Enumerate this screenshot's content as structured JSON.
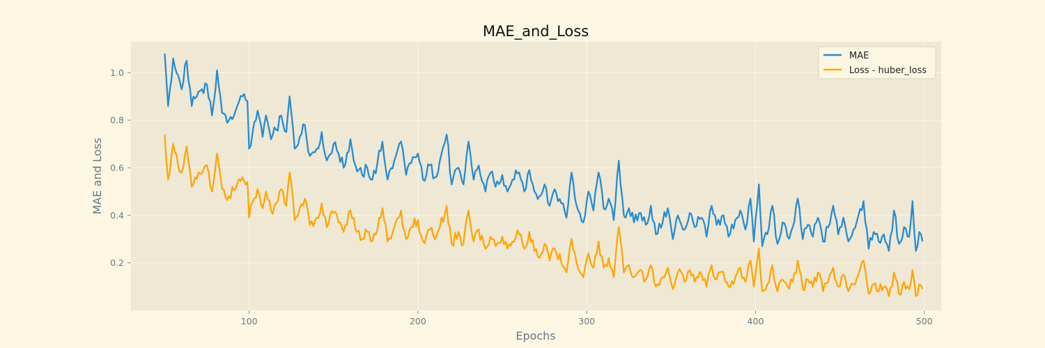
{
  "chart_data": {
    "type": "line",
    "title": "MAE_and_Loss",
    "xlabel": "Epochs",
    "ylabel": "MAE and Loss",
    "xlim": [
      30,
      510
    ],
    "ylim": [
      0,
      1.13
    ],
    "xticks": [
      100,
      200,
      300,
      400,
      500
    ],
    "yticks": [
      0.2,
      0.4,
      0.6,
      0.8,
      1.0
    ],
    "ytick_labels": [
      "0.2",
      "0.4",
      "0.6",
      "0.8",
      "1.0"
    ],
    "x_start": 50,
    "x_end": 499,
    "grid": true,
    "legend_position": "top-right",
    "series": [
      {
        "name": "MAE",
        "color": "#268bd2",
        "anchors": [
          [
            50,
            1.08
          ],
          [
            52,
            0.86
          ],
          [
            55,
            1.06
          ],
          [
            60,
            0.93
          ],
          [
            63,
            1.05
          ],
          [
            66,
            0.86
          ],
          [
            70,
            0.92
          ],
          [
            75,
            0.95
          ],
          [
            78,
            0.82
          ],
          [
            81,
            1.01
          ],
          [
            84,
            0.83
          ],
          [
            88,
            0.8
          ],
          [
            92,
            0.84
          ],
          [
            96,
            0.9
          ],
          [
            99,
            0.88
          ],
          [
            100,
            0.68
          ],
          [
            103,
            0.79
          ],
          [
            105,
            0.84
          ],
          [
            108,
            0.73
          ],
          [
            110,
            0.82
          ],
          [
            113,
            0.72
          ],
          [
            116,
            0.76
          ],
          [
            119,
            0.82
          ],
          [
            122,
            0.75
          ],
          [
            124,
            0.9
          ],
          [
            127,
            0.68
          ],
          [
            130,
            0.73
          ],
          [
            133,
            0.78
          ],
          [
            136,
            0.65
          ],
          [
            140,
            0.68
          ],
          [
            143,
            0.75
          ],
          [
            146,
            0.63
          ],
          [
            150,
            0.7
          ],
          [
            153,
            0.66
          ],
          [
            156,
            0.6
          ],
          [
            160,
            0.72
          ],
          [
            163,
            0.61
          ],
          [
            167,
            0.57
          ],
          [
            170,
            0.6
          ],
          [
            173,
            0.55
          ],
          [
            176,
            0.62
          ],
          [
            179,
            0.71
          ],
          [
            182,
            0.55
          ],
          [
            186,
            0.63
          ],
          [
            190,
            0.71
          ],
          [
            193,
            0.57
          ],
          [
            196,
            0.62
          ],
          [
            200,
            0.66
          ],
          [
            203,
            0.55
          ],
          [
            207,
            0.61
          ],
          [
            210,
            0.56
          ],
          [
            213,
            0.63
          ],
          [
            217,
            0.74
          ],
          [
            220,
            0.53
          ],
          [
            224,
            0.6
          ],
          [
            227,
            0.53
          ],
          [
            230,
            0.71
          ],
          [
            233,
            0.55
          ],
          [
            236,
            0.61
          ],
          [
            240,
            0.5
          ],
          [
            243,
            0.58
          ],
          [
            246,
            0.52
          ],
          [
            250,
            0.57
          ],
          [
            253,
            0.5
          ],
          [
            256,
            0.55
          ],
          [
            260,
            0.58
          ],
          [
            263,
            0.5
          ],
          [
            266,
            0.59
          ],
          [
            269,
            0.5
          ],
          [
            272,
            0.48
          ],
          [
            275,
            0.53
          ],
          [
            278,
            0.44
          ],
          [
            281,
            0.51
          ],
          [
            285,
            0.45
          ],
          [
            288,
            0.39
          ],
          [
            291,
            0.58
          ],
          [
            294,
            0.44
          ],
          [
            298,
            0.37
          ],
          [
            301,
            0.5
          ],
          [
            304,
            0.42
          ],
          [
            307,
            0.58
          ],
          [
            310,
            0.43
          ],
          [
            313,
            0.47
          ],
          [
            316,
            0.38
          ],
          [
            319,
            0.63
          ],
          [
            322,
            0.4
          ],
          [
            325,
            0.43
          ],
          [
            328,
            0.37
          ],
          [
            332,
            0.41
          ],
          [
            335,
            0.36
          ],
          [
            338,
            0.44
          ],
          [
            341,
            0.32
          ],
          [
            345,
            0.37
          ],
          [
            348,
            0.43
          ],
          [
            351,
            0.3
          ],
          [
            354,
            0.4
          ],
          [
            358,
            0.34
          ],
          [
            361,
            0.41
          ],
          [
            364,
            0.35
          ],
          [
            368,
            0.39
          ],
          [
            371,
            0.31
          ],
          [
            374,
            0.44
          ],
          [
            377,
            0.36
          ],
          [
            381,
            0.4
          ],
          [
            384,
            0.31
          ],
          [
            388,
            0.38
          ],
          [
            391,
            0.42
          ],
          [
            394,
            0.34
          ],
          [
            397,
            0.47
          ],
          [
            399,
            0.29
          ],
          [
            402,
            0.53
          ],
          [
            404,
            0.27
          ],
          [
            407,
            0.32
          ],
          [
            410,
            0.44
          ],
          [
            413,
            0.28
          ],
          [
            416,
            0.37
          ],
          [
            419,
            0.31
          ],
          [
            422,
            0.35
          ],
          [
            425,
            0.47
          ],
          [
            428,
            0.3
          ],
          [
            431,
            0.36
          ],
          [
            434,
            0.31
          ],
          [
            437,
            0.39
          ],
          [
            440,
            0.29
          ],
          [
            443,
            0.35
          ],
          [
            446,
            0.44
          ],
          [
            449,
            0.32
          ],
          [
            452,
            0.39
          ],
          [
            455,
            0.29
          ],
          [
            458,
            0.34
          ],
          [
            461,
            0.4
          ],
          [
            464,
            0.46
          ],
          [
            467,
            0.26
          ],
          [
            470,
            0.33
          ],
          [
            473,
            0.29
          ],
          [
            476,
            0.32
          ],
          [
            479,
            0.25
          ],
          [
            482,
            0.42
          ],
          [
            485,
            0.28
          ],
          [
            488,
            0.35
          ],
          [
            491,
            0.31
          ],
          [
            493,
            0.46
          ],
          [
            495,
            0.25
          ],
          [
            497,
            0.33
          ],
          [
            499,
            0.29
          ]
        ]
      },
      {
        "name": "Loss - huber_loss",
        "color": "#ffa500",
        "anchors": [
          [
            50,
            0.74
          ],
          [
            52,
            0.55
          ],
          [
            55,
            0.7
          ],
          [
            60,
            0.58
          ],
          [
            63,
            0.69
          ],
          [
            66,
            0.52
          ],
          [
            70,
            0.58
          ],
          [
            75,
            0.61
          ],
          [
            78,
            0.5
          ],
          [
            81,
            0.66
          ],
          [
            84,
            0.51
          ],
          [
            88,
            0.48
          ],
          [
            92,
            0.51
          ],
          [
            96,
            0.56
          ],
          [
            99,
            0.54
          ],
          [
            100,
            0.39
          ],
          [
            103,
            0.47
          ],
          [
            105,
            0.51
          ],
          [
            108,
            0.43
          ],
          [
            110,
            0.5
          ],
          [
            113,
            0.42
          ],
          [
            116,
            0.45
          ],
          [
            119,
            0.51
          ],
          [
            122,
            0.44
          ],
          [
            124,
            0.58
          ],
          [
            127,
            0.38
          ],
          [
            130,
            0.43
          ],
          [
            133,
            0.47
          ],
          [
            136,
            0.36
          ],
          [
            140,
            0.39
          ],
          [
            143,
            0.45
          ],
          [
            146,
            0.35
          ],
          [
            150,
            0.41
          ],
          [
            153,
            0.37
          ],
          [
            156,
            0.33
          ],
          [
            160,
            0.42
          ],
          [
            163,
            0.34
          ],
          [
            167,
            0.3
          ],
          [
            170,
            0.33
          ],
          [
            173,
            0.29
          ],
          [
            176,
            0.34
          ],
          [
            179,
            0.43
          ],
          [
            182,
            0.29
          ],
          [
            186,
            0.35
          ],
          [
            190,
            0.42
          ],
          [
            193,
            0.3
          ],
          [
            196,
            0.35
          ],
          [
            200,
            0.38
          ],
          [
            203,
            0.29
          ],
          [
            207,
            0.34
          ],
          [
            210,
            0.3
          ],
          [
            213,
            0.35
          ],
          [
            217,
            0.44
          ],
          [
            220,
            0.28
          ],
          [
            224,
            0.33
          ],
          [
            227,
            0.28
          ],
          [
            230,
            0.42
          ],
          [
            233,
            0.29
          ],
          [
            236,
            0.34
          ],
          [
            240,
            0.26
          ],
          [
            243,
            0.31
          ],
          [
            246,
            0.27
          ],
          [
            250,
            0.31
          ],
          [
            253,
            0.26
          ],
          [
            256,
            0.29
          ],
          [
            260,
            0.32
          ],
          [
            263,
            0.26
          ],
          [
            266,
            0.33
          ],
          [
            269,
            0.25
          ],
          [
            272,
            0.22
          ],
          [
            275,
            0.28
          ],
          [
            278,
            0.21
          ],
          [
            281,
            0.26
          ],
          [
            285,
            0.2
          ],
          [
            288,
            0.16
          ],
          [
            291,
            0.3
          ],
          [
            294,
            0.2
          ],
          [
            298,
            0.14
          ],
          [
            301,
            0.24
          ],
          [
            304,
            0.18
          ],
          [
            307,
            0.29
          ],
          [
            310,
            0.18
          ],
          [
            313,
            0.22
          ],
          [
            316,
            0.14
          ],
          [
            319,
            0.35
          ],
          [
            322,
            0.16
          ],
          [
            325,
            0.19
          ],
          [
            328,
            0.14
          ],
          [
            332,
            0.17
          ],
          [
            335,
            0.13
          ],
          [
            338,
            0.19
          ],
          [
            341,
            0.1
          ],
          [
            345,
            0.14
          ],
          [
            348,
            0.18
          ],
          [
            351,
            0.09
          ],
          [
            354,
            0.16
          ],
          [
            358,
            0.12
          ],
          [
            361,
            0.17
          ],
          [
            364,
            0.12
          ],
          [
            368,
            0.15
          ],
          [
            371,
            0.1
          ],
          [
            374,
            0.19
          ],
          [
            377,
            0.13
          ],
          [
            381,
            0.16
          ],
          [
            384,
            0.1
          ],
          [
            388,
            0.14
          ],
          [
            391,
            0.18
          ],
          [
            394,
            0.12
          ],
          [
            397,
            0.21
          ],
          [
            399,
            0.1
          ],
          [
            402,
            0.26
          ],
          [
            404,
            0.08
          ],
          [
            407,
            0.11
          ],
          [
            410,
            0.19
          ],
          [
            413,
            0.08
          ],
          [
            416,
            0.13
          ],
          [
            419,
            0.1
          ],
          [
            422,
            0.12
          ],
          [
            425,
            0.21
          ],
          [
            428,
            0.09
          ],
          [
            431,
            0.13
          ],
          [
            434,
            0.1
          ],
          [
            437,
            0.16
          ],
          [
            440,
            0.08
          ],
          [
            443,
            0.12
          ],
          [
            446,
            0.18
          ],
          [
            449,
            0.1
          ],
          [
            452,
            0.15
          ],
          [
            455,
            0.08
          ],
          [
            458,
            0.11
          ],
          [
            461,
            0.15
          ],
          [
            464,
            0.21
          ],
          [
            467,
            0.07
          ],
          [
            470,
            0.11
          ],
          [
            473,
            0.08
          ],
          [
            476,
            0.1
          ],
          [
            479,
            0.06
          ],
          [
            482,
            0.16
          ],
          [
            485,
            0.07
          ],
          [
            488,
            0.12
          ],
          [
            491,
            0.09
          ],
          [
            493,
            0.17
          ],
          [
            495,
            0.06
          ],
          [
            497,
            0.11
          ],
          [
            499,
            0.09
          ]
        ]
      }
    ]
  }
}
